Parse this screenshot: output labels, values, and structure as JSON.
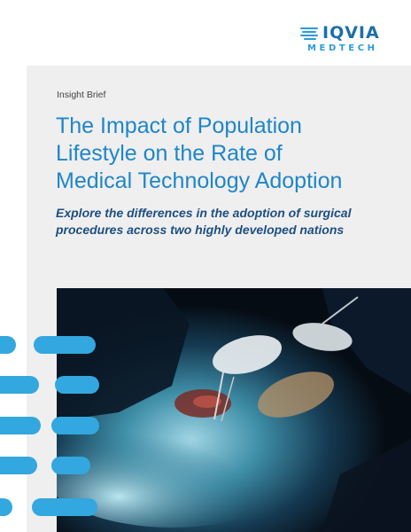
{
  "brand": {
    "name": "IQVIA",
    "subname": "MEDTECH",
    "primary_color": "#1d6fa8",
    "accent_color": "#2a9bd8",
    "logo_icon": "striped-bars-icon"
  },
  "document": {
    "type": "Insight Brief",
    "title_lines": [
      "The Impact of Population",
      "Lifestyle on the Rate of",
      "Medical Technology Adoption"
    ],
    "subtitle_lines": [
      "Explore the differences in the adoption of surgical",
      "procedures across two highly developed nations"
    ],
    "title_color": "#1f86c8",
    "subtitle_color": "#1d4f80"
  },
  "cover_image": {
    "subject": "surgery-photo"
  }
}
